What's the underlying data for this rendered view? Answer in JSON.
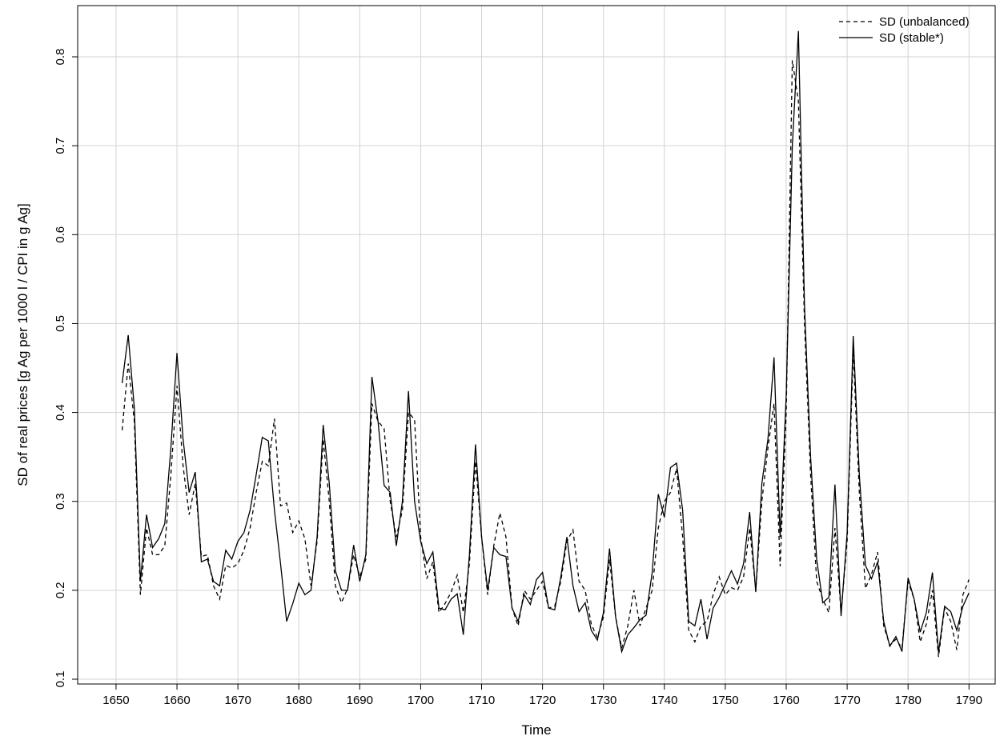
{
  "chart_data": {
    "type": "line",
    "xlabel": "Time",
    "ylabel": "SD of real prices [g Ag per 1000 l / CPI in g Ag]",
    "x": [
      1651,
      1652,
      1653,
      1654,
      1655,
      1656,
      1657,
      1658,
      1659,
      1660,
      1661,
      1662,
      1663,
      1664,
      1665,
      1666,
      1667,
      1668,
      1669,
      1670,
      1671,
      1672,
      1673,
      1674,
      1675,
      1676,
      1677,
      1678,
      1679,
      1680,
      1681,
      1682,
      1683,
      1684,
      1685,
      1686,
      1687,
      1688,
      1689,
      1690,
      1691,
      1692,
      1693,
      1694,
      1695,
      1696,
      1697,
      1698,
      1699,
      1700,
      1701,
      1702,
      1703,
      1704,
      1705,
      1706,
      1707,
      1708,
      1709,
      1710,
      1711,
      1712,
      1713,
      1714,
      1715,
      1716,
      1717,
      1718,
      1719,
      1720,
      1721,
      1722,
      1723,
      1724,
      1725,
      1726,
      1727,
      1728,
      1729,
      1730,
      1731,
      1732,
      1733,
      1734,
      1735,
      1736,
      1737,
      1738,
      1739,
      1740,
      1741,
      1742,
      1743,
      1744,
      1745,
      1746,
      1747,
      1748,
      1749,
      1750,
      1751,
      1752,
      1753,
      1754,
      1755,
      1756,
      1757,
      1758,
      1759,
      1760,
      1761,
      1762,
      1763,
      1764,
      1765,
      1766,
      1767,
      1768,
      1769,
      1770,
      1771,
      1772,
      1773,
      1774,
      1775,
      1776,
      1777,
      1778,
      1779,
      1780,
      1781,
      1782,
      1783,
      1784,
      1785,
      1786,
      1787,
      1788,
      1789,
      1790
    ],
    "series": [
      {
        "name": "SD (unbalanced)",
        "color": "#000000",
        "linestyle": "dashed",
        "values": [
          0.38,
          0.455,
          0.39,
          0.195,
          0.27,
          0.24,
          0.24,
          0.25,
          0.33,
          0.43,
          0.34,
          0.285,
          0.32,
          0.238,
          0.24,
          0.205,
          0.19,
          0.228,
          0.225,
          0.23,
          0.245,
          0.27,
          0.31,
          0.345,
          0.34,
          0.393,
          0.295,
          0.298,
          0.265,
          0.278,
          0.258,
          0.205,
          0.255,
          0.37,
          0.3,
          0.205,
          0.186,
          0.202,
          0.24,
          0.215,
          0.235,
          0.41,
          0.39,
          0.382,
          0.3,
          0.26,
          0.29,
          0.4,
          0.392,
          0.26,
          0.213,
          0.232,
          0.175,
          0.185,
          0.198,
          0.217,
          0.175,
          0.23,
          0.345,
          0.26,
          0.195,
          0.25,
          0.287,
          0.26,
          0.18,
          0.16,
          0.2,
          0.19,
          0.2,
          0.21,
          0.18,
          0.182,
          0.21,
          0.255,
          0.268,
          0.21,
          0.2,
          0.162,
          0.147,
          0.17,
          0.235,
          0.17,
          0.135,
          0.16,
          0.2,
          0.16,
          0.18,
          0.2,
          0.27,
          0.3,
          0.31,
          0.337,
          0.26,
          0.155,
          0.142,
          0.16,
          0.165,
          0.195,
          0.215,
          0.195,
          0.203,
          0.2,
          0.215,
          0.27,
          0.2,
          0.3,
          0.36,
          0.41,
          0.227,
          0.4,
          0.796,
          0.75,
          0.5,
          0.33,
          0.21,
          0.19,
          0.175,
          0.27,
          0.175,
          0.255,
          0.47,
          0.31,
          0.202,
          0.218,
          0.243,
          0.16,
          0.138,
          0.145,
          0.135,
          0.21,
          0.19,
          0.142,
          0.162,
          0.2,
          0.125,
          0.18,
          0.165,
          0.133,
          0.195,
          0.212
        ]
      },
      {
        "name": "SD (stable*)",
        "color": "#000000",
        "linestyle": "solid",
        "values": [
          0.433,
          0.487,
          0.405,
          0.21,
          0.285,
          0.248,
          0.258,
          0.275,
          0.36,
          0.467,
          0.37,
          0.31,
          0.333,
          0.232,
          0.235,
          0.21,
          0.205,
          0.245,
          0.235,
          0.255,
          0.265,
          0.29,
          0.33,
          0.372,
          0.368,
          0.29,
          0.23,
          0.165,
          0.185,
          0.208,
          0.195,
          0.2,
          0.26,
          0.386,
          0.32,
          0.222,
          0.2,
          0.2,
          0.251,
          0.21,
          0.24,
          0.44,
          0.39,
          0.318,
          0.31,
          0.25,
          0.3,
          0.424,
          0.3,
          0.255,
          0.23,
          0.243,
          0.18,
          0.178,
          0.19,
          0.196,
          0.15,
          0.24,
          0.364,
          0.26,
          0.2,
          0.248,
          0.24,
          0.238,
          0.18,
          0.165,
          0.195,
          0.184,
          0.212,
          0.22,
          0.18,
          0.178,
          0.215,
          0.26,
          0.205,
          0.176,
          0.186,
          0.155,
          0.144,
          0.175,
          0.247,
          0.17,
          0.131,
          0.15,
          0.158,
          0.167,
          0.172,
          0.22,
          0.308,
          0.282,
          0.338,
          0.343,
          0.29,
          0.165,
          0.16,
          0.19,
          0.145,
          0.18,
          0.192,
          0.207,
          0.222,
          0.207,
          0.23,
          0.288,
          0.198,
          0.32,
          0.37,
          0.462,
          0.26,
          0.42,
          0.7,
          0.829,
          0.52,
          0.35,
          0.235,
          0.186,
          0.192,
          0.319,
          0.171,
          0.265,
          0.486,
          0.33,
          0.228,
          0.213,
          0.232,
          0.165,
          0.137,
          0.148,
          0.131,
          0.214,
          0.19,
          0.153,
          0.175,
          0.22,
          0.13,
          0.182,
          0.176,
          0.155,
          0.182,
          0.197
        ]
      }
    ],
    "xlim": [
      1643.7,
      1794.3
    ],
    "xticks": [
      1650,
      1660,
      1670,
      1680,
      1690,
      1700,
      1710,
      1720,
      1730,
      1740,
      1750,
      1760,
      1770,
      1780,
      1790
    ],
    "ylim": [
      0.0946,
      0.8576
    ],
    "yticks": [
      0.1,
      0.2,
      0.3,
      0.4,
      0.5,
      0.6,
      0.7,
      0.8
    ],
    "grid": true,
    "legend": "topright"
  }
}
